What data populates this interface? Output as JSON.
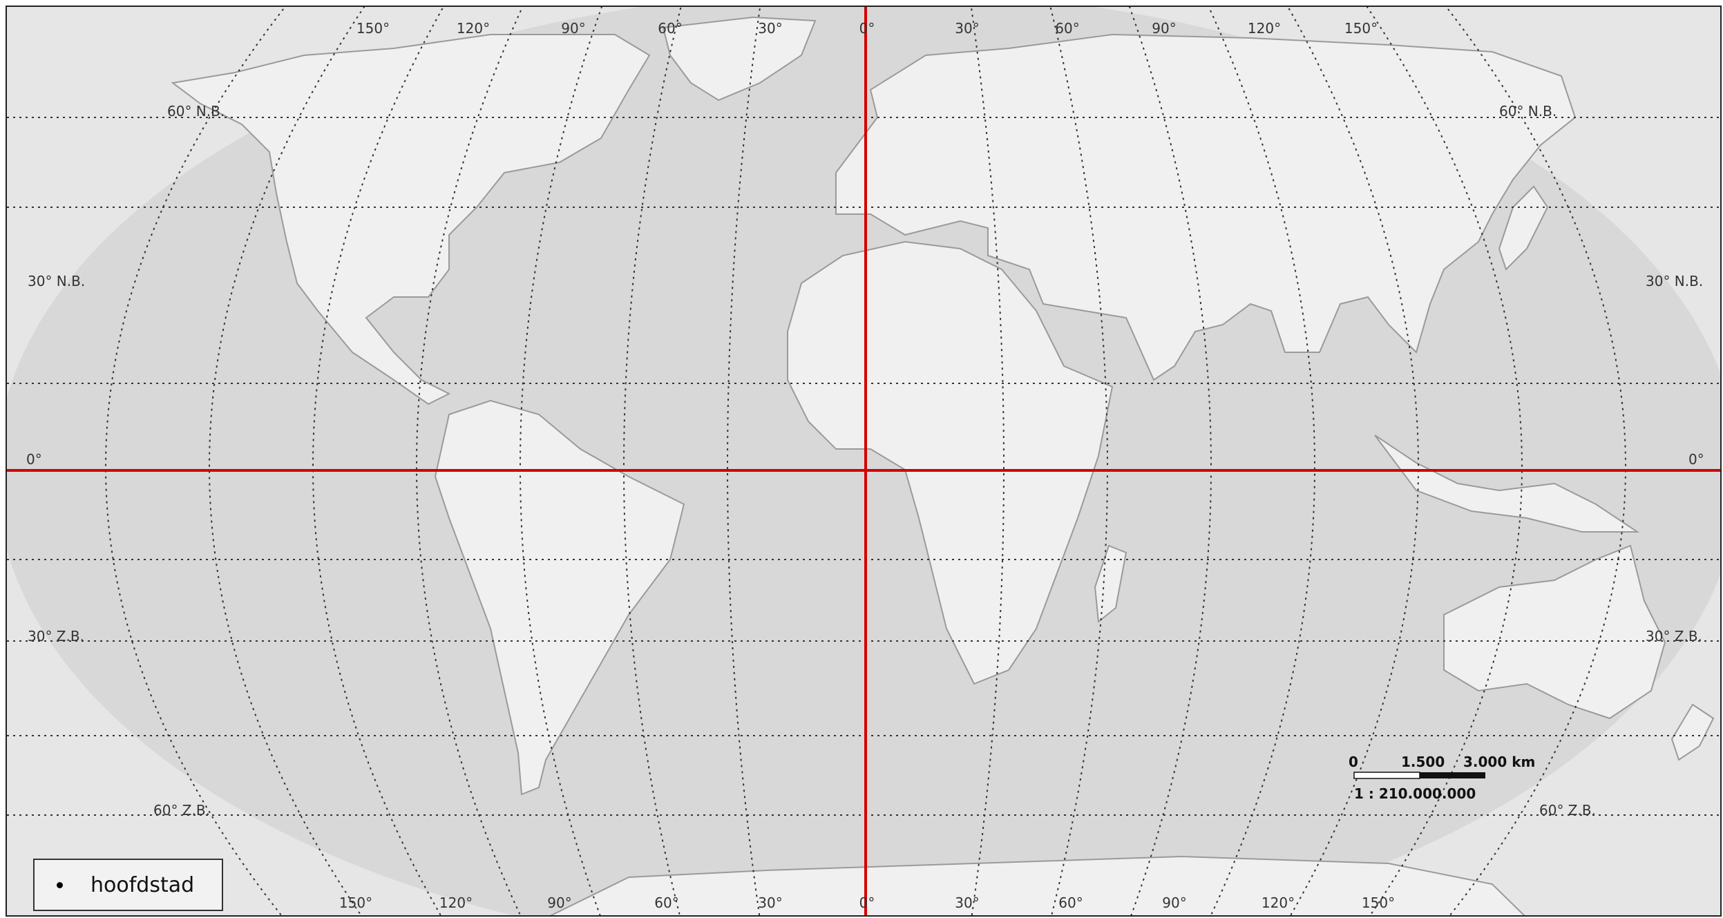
{
  "legend": {
    "symbol_icon": "dot-icon",
    "label": "hoofdstad"
  },
  "meridian_labels": [
    "150°",
    "120°",
    "90°",
    "60°",
    "30°",
    "0°",
    "30°",
    "60°",
    "90°",
    "120°",
    "150°"
  ],
  "parallel_labels": {
    "n60": "60° N.B.",
    "n30": "30° N.B.",
    "eq": "0°",
    "s30": "30° Z.B.",
    "s60": "60° Z.B."
  },
  "scale_bar": {
    "ticks": [
      "0",
      "1.500",
      "3.000 km"
    ],
    "ratio": "1 : 210.000.000"
  },
  "colors": {
    "ocean": "#d8d8d8",
    "land": "#f0f0f0",
    "outside": "#e6e6e6",
    "reference_lines": "#d40000",
    "graticule": "#333333"
  }
}
